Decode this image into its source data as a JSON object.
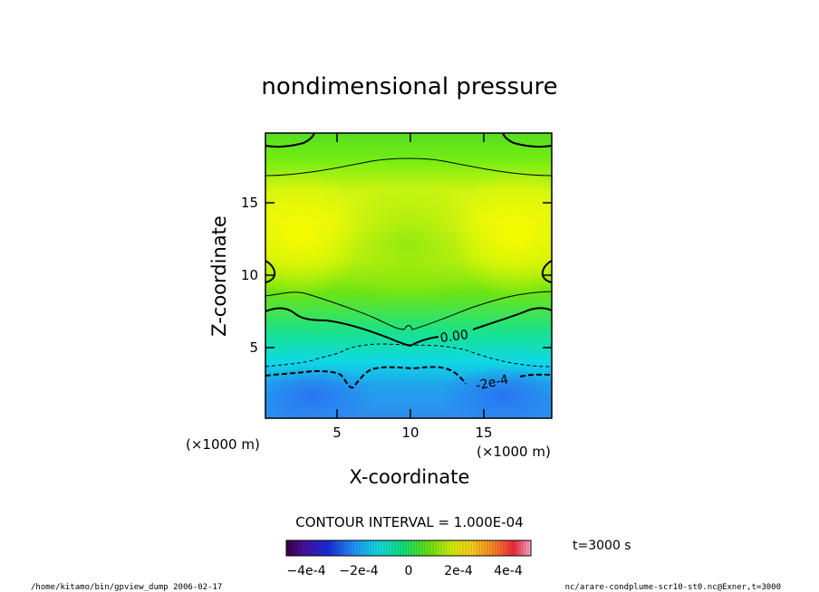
{
  "chart_data": {
    "type": "heatmap",
    "title": "nondimensional pressure",
    "xlabel": "X-coordinate",
    "ylabel": "Z-coordinate",
    "xunit_label": "(×1000 m)",
    "xunit_label_right": "(×1000 m)",
    "xlim": [
      0,
      19.5
    ],
    "ylim": [
      0,
      19.5
    ],
    "x_ticks": [
      5,
      10,
      15
    ],
    "x_tick_labels": [
      "5",
      "10",
      "15"
    ],
    "y_ticks": [
      5,
      10,
      15
    ],
    "y_tick_labels": [
      "5",
      "10",
      "15"
    ],
    "contour_labels": [
      {
        "text": "0.00",
        "x": 12.9,
        "z": 5.6
      },
      {
        "text": "-2e-4",
        "x": 16.0,
        "z": 2.5
      }
    ],
    "contour_interval_text": "CONTOUR INTERVAL = 1.000E-04",
    "colorbar": {
      "range": [
        -0.0005,
        0.0005
      ],
      "tick_labels": [
        "−4e-4",
        "−2e-4",
        "0",
        "2e-4",
        "4e-4"
      ],
      "tick_values": [
        -0.0004,
        -0.0002,
        0,
        0.0002,
        0.0004
      ]
    },
    "time_label": "t=3000 s",
    "footer_left": "/home/kitamo/bin/gpview_dump  2006-02-17",
    "footer_right": "nc/arare-condplume-scr10-st0.nc@Exner,t=3000"
  }
}
